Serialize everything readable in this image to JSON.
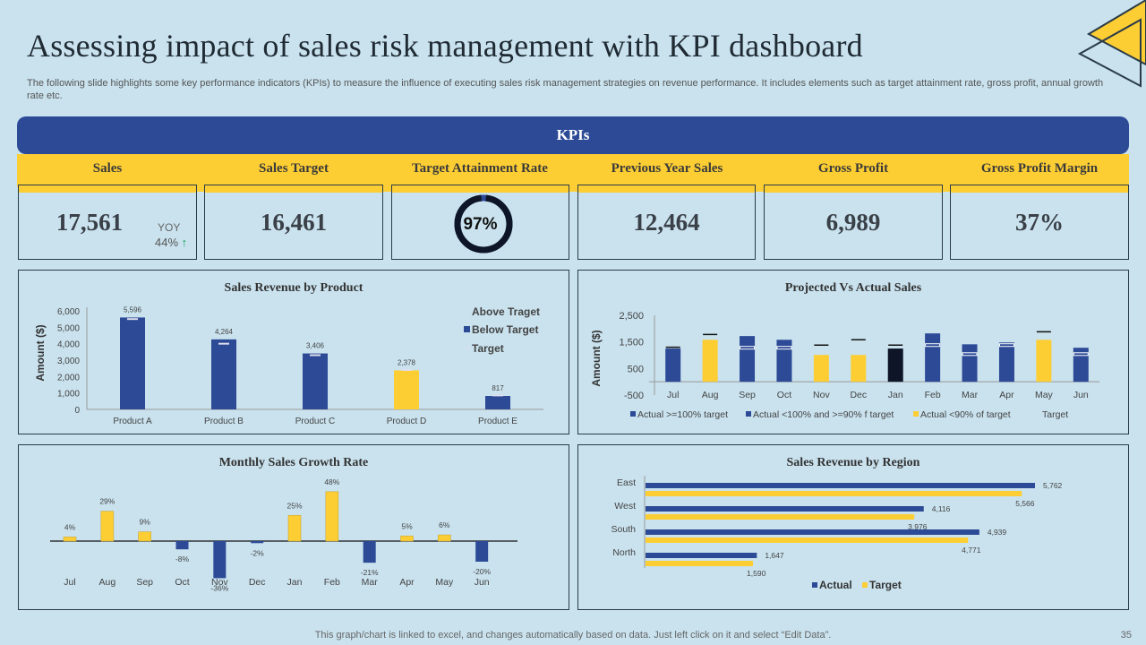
{
  "header": {
    "title": "Assessing impact of sales risk management with KPI dashboard",
    "subtitle": "The following slide highlights some key performance indicators (KPIs) to measure the influence of executing sales risk management strategies on revenue performance. It includes elements such as target attainment rate, gross profit, annual growth rate etc."
  },
  "colors": {
    "navy": "#2c4a96",
    "yellow": "#fdce33",
    "dark": "#0d1526",
    "background": "#c9e2ee",
    "green_arrow": "#1aa35a"
  },
  "kpis": {
    "banner": "KPIs",
    "items": [
      {
        "label": "Sales",
        "value": "17,561",
        "yoy_label": "YOY",
        "yoy_value": "44%",
        "yoy_icon": "arrow-up-icon"
      },
      {
        "label": "Sales Target",
        "value": "16,461"
      },
      {
        "label": "Target Attainment  Rate",
        "value": "97%",
        "progress": 0.97
      },
      {
        "label": "Previous Year Sales",
        "value": "12,464"
      },
      {
        "label": "Gross Profit",
        "value": "6,989"
      },
      {
        "label": "Gross Profit  Margin",
        "value": "37%"
      }
    ]
  },
  "chart_data": [
    {
      "id": "sales-revenue-by-product",
      "type": "bar",
      "title": "Sales Revenue by Product",
      "ylabel": "Amount  ($)",
      "xlabel": "",
      "ylim": [
        0,
        6000
      ],
      "yticks": [
        "0",
        "1,000",
        "2,000",
        "3,000",
        "4,000",
        "5,000",
        "6,000"
      ],
      "ytick_values": [
        0,
        1000,
        2000,
        3000,
        4000,
        5000,
        6000
      ],
      "categories": [
        "Product A",
        "Product B",
        "Product C",
        "Product D",
        "Product E"
      ],
      "values": [
        5596,
        4264,
        3406,
        2378,
        817
      ],
      "value_labels": [
        "5,596",
        "4,264",
        "3,406",
        "2,378",
        "817"
      ],
      "targets": [
        5500,
        4000,
        3300,
        2400,
        850
      ],
      "status": [
        "above",
        "above",
        "above",
        "below",
        "below"
      ],
      "legend": [
        "Above Traget",
        "Below Target",
        "Target"
      ],
      "legend_position": "top-right",
      "grid": false
    },
    {
      "id": "projected-vs-actual-sales",
      "type": "bar",
      "title": "Projected Vs Actual Sales",
      "ylabel": "Amount  ($)",
      "xlabel": "",
      "ylim": [
        -500,
        2500
      ],
      "yticks": [
        "-500",
        "500",
        "1,500",
        "2,500"
      ],
      "ytick_values": [
        -500,
        500,
        1500,
        2500
      ],
      "categories": [
        "Jul",
        "Aug",
        "Sep",
        "Oct",
        "Nov",
        "Dec",
        "Jan",
        "Feb",
        "Mar",
        "Apr",
        "May",
        "Jun"
      ],
      "series": [
        {
          "name": "Actual",
          "values": [
            1250,
            1580,
            1720,
            1580,
            1010,
            1010,
            1250,
            1820,
            1410,
            1480,
            1580,
            1280
          ]
        },
        {
          "name": "Target",
          "values": [
            1300,
            1780,
            1280,
            1280,
            1380,
            1580,
            1380,
            1380,
            1040,
            1380,
            1880,
            1040
          ]
        }
      ],
      "category_class": [
        "ge100",
        "lt90",
        "ge100",
        "ge100",
        "lt90",
        "lt90",
        "ge90",
        "ge100",
        "ge100",
        "ge100",
        "lt90",
        "ge100"
      ],
      "legend": [
        "Actual >=100% target",
        "Actual <100% and >=90% f target",
        "Actual <90% of target",
        "Target"
      ],
      "legend_position": "bottom",
      "grid": false
    },
    {
      "id": "monthly-sales-growth-rate",
      "type": "bar",
      "title": "Monthly Sales Growth Rate",
      "xlabel": "",
      "ylabel": "",
      "ylim": [
        -40,
        50
      ],
      "categories": [
        "Jul",
        "Aug",
        "Sep",
        "Oct",
        "Nov",
        "Dec",
        "Jan",
        "Feb",
        "Mar",
        "Apr",
        "May",
        "Jun"
      ],
      "values": [
        4,
        29,
        9,
        -8,
        -36,
        -2,
        25,
        48,
        -21,
        5,
        6,
        -20
      ],
      "value_labels": [
        "4%",
        "29%",
        "9%",
        "-8%",
        "-36%",
        "-2%",
        "25%",
        "48%",
        "-21%",
        "5%",
        "6%",
        "-20%"
      ],
      "grid": false
    },
    {
      "id": "sales-revenue-by-region",
      "type": "bar",
      "orientation": "horizontal",
      "title": "Sales Revenue by Region",
      "xlabel": "",
      "ylabel": "",
      "xlim": [
        0,
        6500
      ],
      "categories": [
        "East",
        "West",
        "South",
        "North"
      ],
      "series": [
        {
          "name": "Actual",
          "values": [
            5762,
            4116,
            4939,
            1647
          ],
          "labels": [
            "5,762",
            "4,116",
            "4,939",
            "1,647"
          ]
        },
        {
          "name": "Target",
          "values": [
            5566,
            3976,
            4771,
            1590
          ],
          "labels": [
            "5,566",
            "3,976",
            "4,771",
            "1,590"
          ]
        }
      ],
      "legend": [
        "Actual",
        "Target"
      ],
      "legend_position": "bottom",
      "grid": false
    }
  ],
  "footer": {
    "note": "This graph/chart is linked to excel,  and changes automatically based on data. Just left click on it and select “Edit Data”.",
    "page_number": "35"
  }
}
